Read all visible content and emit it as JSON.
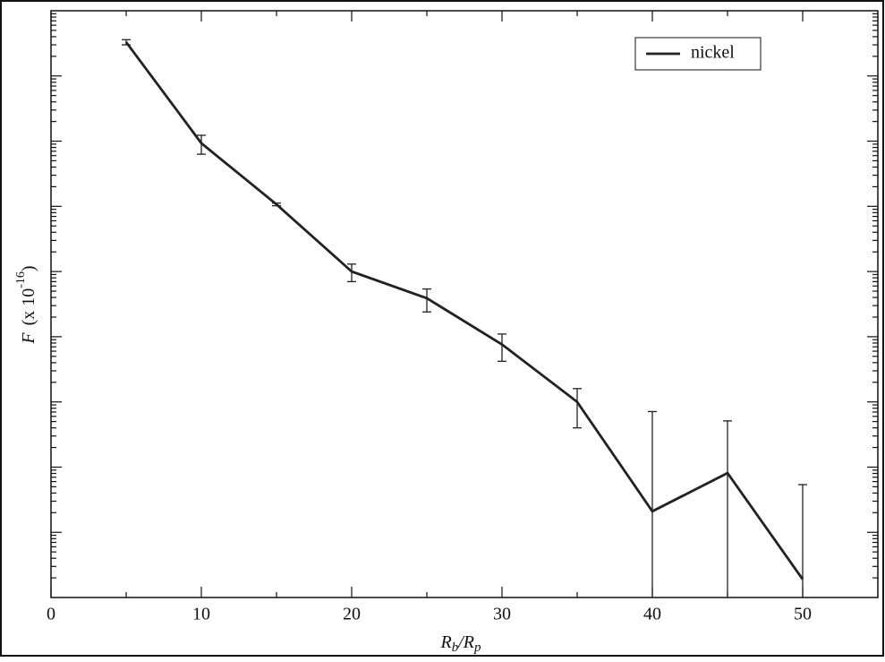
{
  "chart_data": {
    "type": "line",
    "x_label": {
      "main": "R",
      "sub": "b",
      "mid": "/R",
      "sub2": "p"
    },
    "y_label": {
      "symbol": "F",
      "unit": "(x 10",
      "exponent": "-16",
      "close": ")"
    },
    "x": [
      5,
      10,
      15,
      20,
      25,
      30,
      35,
      40,
      45,
      50
    ],
    "series": [
      {
        "name": "nickel",
        "color": "#222222",
        "values": [
          3.3,
          0.093,
          0.0107,
          0.001,
          0.00039,
          7.6e-05,
          1e-05,
          2.1e-07,
          8.1e-07,
          1.9e-08
        ],
        "errors": [
          0.3,
          0.03,
          0.0005,
          0.0003,
          0.00015,
          3.4e-05,
          6e-06,
          6.9e-06,
          4.3e-06,
          5.2e-07
        ]
      }
    ],
    "xlim": [
      0,
      55
    ],
    "xticks": [
      0,
      10,
      20,
      30,
      40,
      50
    ],
    "ylim": [
      1e-08,
      10
    ],
    "yticks": [
      1e-07,
      1e-06,
      1e-05,
      0.0001,
      0.001,
      0.01,
      0.1,
      1
    ],
    "log_y": true,
    "legend": "upper right"
  }
}
